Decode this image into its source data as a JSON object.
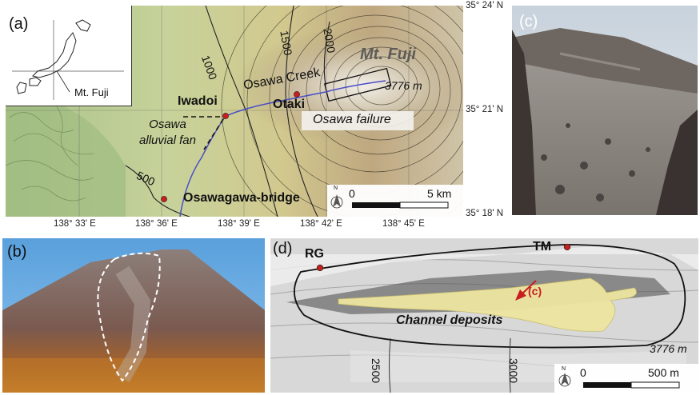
{
  "panel_a": {
    "tag": "(a)",
    "peak_name": "Mt. Fuji",
    "peak_elev": "3776 m",
    "failure_name": "Osawa failure",
    "creek_name": "Osawa Creek",
    "fan_name": "Osawa alluvial fan",
    "sites": [
      {
        "name": "Iwadoi"
      },
      {
        "name": "Otaki"
      },
      {
        "name": "Osawagawa-bridge"
      }
    ],
    "contours": [
      "500",
      "1000",
      "1500",
      "2000"
    ],
    "inset_label": "Mt. Fuji",
    "scale": {
      "start": "0",
      "end": "5 km"
    },
    "north": "N",
    "lat_ticks": [
      "35° 24' N",
      "35° 21' N",
      "35° 18' N"
    ],
    "lon_ticks": [
      "138° 33' E",
      "138° 36' E",
      "138° 39' E",
      "138° 42' E",
      "138° 45' E"
    ],
    "colors": {
      "creek": "#4a4ec8",
      "site": "#c81e1e"
    }
  },
  "panel_b": {
    "tag": "(b)"
  },
  "panel_c": {
    "tag": "(c)"
  },
  "panel_d": {
    "tag": "(d)",
    "sites": [
      {
        "name": "RG"
      },
      {
        "name": "TM"
      }
    ],
    "deposit_label": "Channel deposits",
    "photo_ref": "(c)",
    "contours": [
      "2500",
      "3000"
    ],
    "peak_elev": "3776 m",
    "scale": {
      "start": "0",
      "end": "500 m"
    },
    "north": "N",
    "colors": {
      "deposit": "#eee5a0",
      "arrow": "#c81e1e"
    }
  }
}
